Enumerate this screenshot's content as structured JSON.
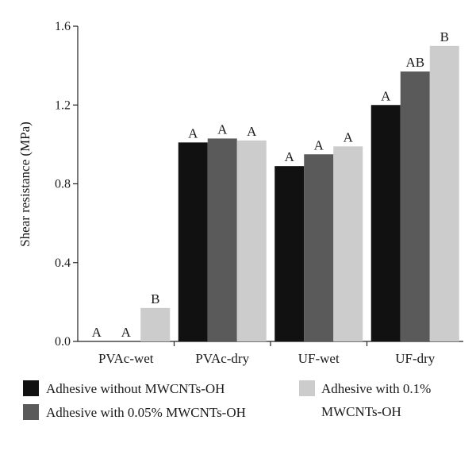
{
  "chart_data": {
    "type": "bar",
    "title": "",
    "xlabel": "",
    "ylabel": "Shear resistance (MPa)",
    "ylim": [
      0,
      1.6
    ],
    "yticks": [
      "0.0",
      "0.4",
      "0.8",
      "1.2",
      "1.6"
    ],
    "ytick_values": [
      0,
      0.4,
      0.8,
      1.2,
      1.6
    ],
    "categories": [
      "PVAc-wet",
      "PVAc-dry",
      "UF-wet",
      "UF-dry"
    ],
    "grid": false,
    "legend_position": "bottom",
    "series": [
      {
        "name": "Adhesive without MWCNTs-OH",
        "color": "#111111",
        "values": [
          0,
          1.01,
          0.89,
          1.2
        ],
        "labels": [
          "A",
          "A",
          "A",
          "A"
        ]
      },
      {
        "name": "Adhesive with 0.05% MWCNTs-OH",
        "color": "#5a5a5a",
        "values": [
          0,
          1.03,
          0.95,
          1.37
        ],
        "labels": [
          "A",
          "A",
          "A",
          "AB"
        ]
      },
      {
        "name": "Adhesive with 0.1% MWCNTs-OH",
        "color": "#cccccc",
        "values": [
          0.17,
          1.02,
          0.99,
          1.5
        ],
        "labels": [
          "B",
          "A",
          "A",
          "B"
        ]
      }
    ],
    "legend": {
      "line1": "Adhesive with 0.1%",
      "line2": "MWCNTs-OH"
    }
  }
}
